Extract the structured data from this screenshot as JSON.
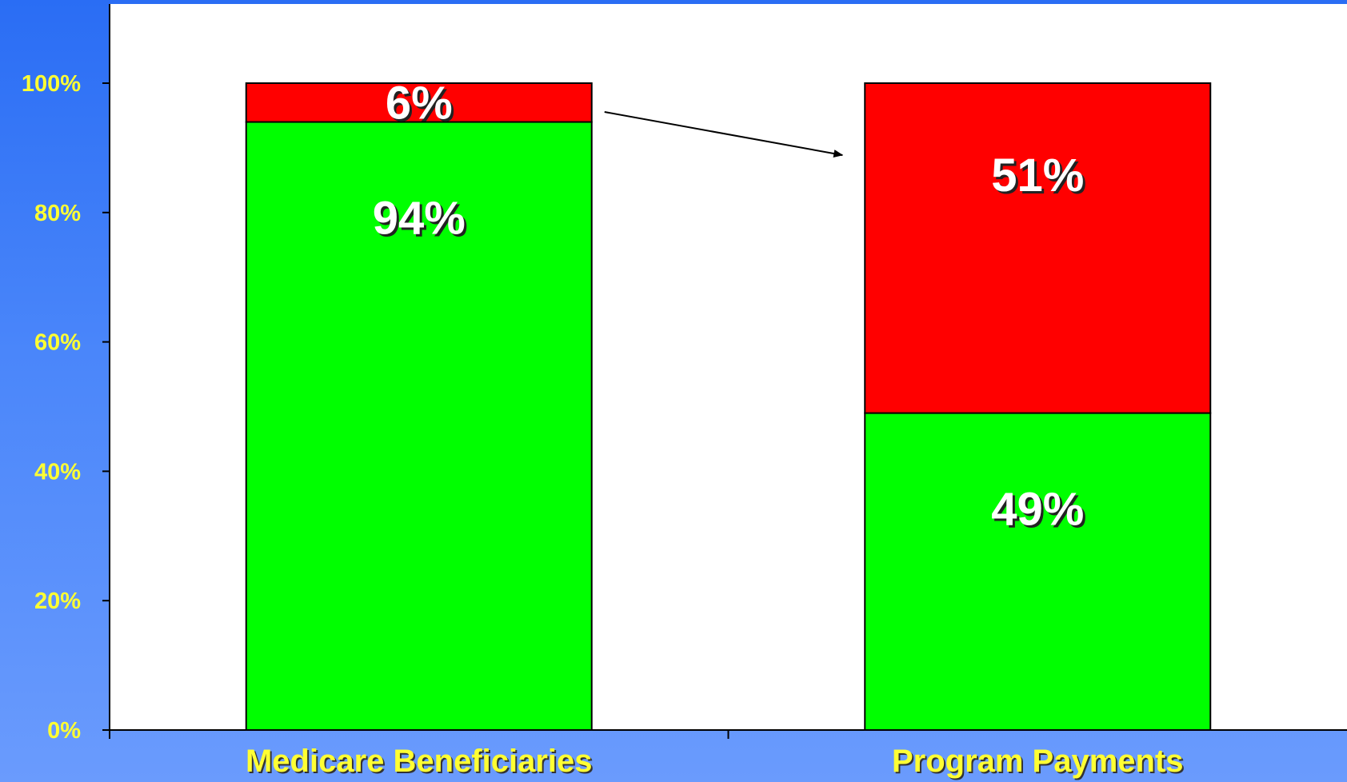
{
  "chart_data": {
    "type": "bar",
    "stacked": true,
    "categories": [
      "Medicare Beneficiaries",
      "Program Payments"
    ],
    "series": [
      {
        "values": [
          94,
          49
        ],
        "labels": [
          "94%",
          "49%"
        ],
        "color": "#00ff00"
      },
      {
        "values": [
          6,
          51
        ],
        "labels": [
          "6%",
          "51%"
        ],
        "color": "#ff0000"
      }
    ],
    "ylim": [
      0,
      100
    ],
    "yticks": [
      0,
      20,
      40,
      60,
      80,
      100
    ],
    "ytick_labels": [
      "0%",
      "20%",
      "40%",
      "60%",
      "80%",
      "100%"
    ],
    "annotations": [
      {
        "type": "arrow",
        "from_category": "Medicare Beneficiaries",
        "to_category": "Program Payments"
      }
    ],
    "colors": {
      "plot_background": "#ffffff",
      "tick_label": "#ffff33",
      "data_label": "#ffffff"
    }
  }
}
